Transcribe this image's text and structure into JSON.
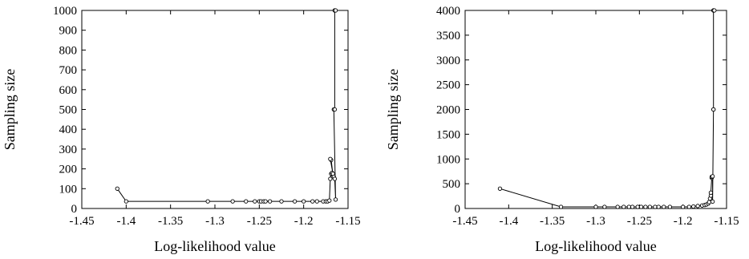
{
  "chart_data": [
    {
      "type": "line",
      "xlabel": "Log-likelihood value",
      "ylabel": "Sampling size",
      "xlim": [
        -1.45,
        -1.15
      ],
      "ylim": [
        0,
        1000
      ],
      "xticks": [
        "-1.45",
        "-1.4",
        "-1.35",
        "-1.3",
        "-1.25",
        "-1.2",
        "-1.15"
      ],
      "yticks": [
        "0",
        "100",
        "200",
        "300",
        "400",
        "500",
        "600",
        "700",
        "800",
        "900",
        "1000"
      ],
      "grid": false,
      "series": [
        {
          "x": [
            -1.41,
            -1.4,
            -1.308,
            -1.28,
            -1.265,
            -1.255,
            -1.25,
            -1.248,
            -1.245,
            -1.243,
            -1.238,
            -1.225,
            -1.21,
            -1.2,
            -1.19,
            -1.185,
            -1.178,
            -1.175,
            -1.173,
            -1.171,
            -1.17,
            -1.169,
            -1.168,
            -1.167,
            -1.169,
            -1.17,
            -1.167,
            -1.166,
            -1.165,
            -1.164,
            -1.166,
            -1.165,
            -1.165,
            -1.165,
            -1.164
          ],
          "y": [
            100,
            36,
            36,
            36,
            36,
            36,
            36,
            36,
            36,
            36,
            36,
            36,
            36,
            36,
            36,
            36,
            36,
            36,
            36,
            40,
            150,
            175,
            180,
            170,
            245,
            250,
            175,
            160,
            150,
            45,
            500,
            500,
            1000,
            1000,
            1000
          ]
        }
      ]
    },
    {
      "type": "line",
      "xlabel": "Log-likelihood value",
      "ylabel": "Sampling size",
      "xlim": [
        -1.45,
        -1.15
      ],
      "ylim": [
        0,
        4000
      ],
      "xticks": [
        "-1.45",
        "-1.4",
        "-1.35",
        "-1.3",
        "-1.25",
        "-1.2",
        "-1.15"
      ],
      "yticks": [
        "0",
        "500",
        "1000",
        "1500",
        "2000",
        "2500",
        "3000",
        "3500",
        "4000"
      ],
      "grid": false,
      "series": [
        {
          "x": [
            -1.41,
            -1.34,
            -1.3,
            -1.29,
            -1.275,
            -1.268,
            -1.262,
            -1.258,
            -1.252,
            -1.248,
            -1.243,
            -1.238,
            -1.232,
            -1.228,
            -1.222,
            -1.215,
            -1.2,
            -1.193,
            -1.188,
            -1.183,
            -1.178,
            -1.175,
            -1.173,
            -1.171,
            -1.17,
            -1.169,
            -1.168,
            -1.168,
            -1.167,
            -1.167,
            -1.166,
            -1.166,
            -1.165,
            -1.165,
            -1.165,
            -1.165,
            -1.164
          ],
          "y": [
            400,
            32,
            32,
            32,
            32,
            32,
            32,
            32,
            32,
            32,
            32,
            32,
            32,
            32,
            32,
            32,
            32,
            32,
            40,
            50,
            60,
            70,
            80,
            100,
            130,
            200,
            260,
            320,
            620,
            640,
            650,
            140,
            2000,
            2000,
            4000,
            4000,
            4000
          ]
        }
      ]
    }
  ]
}
